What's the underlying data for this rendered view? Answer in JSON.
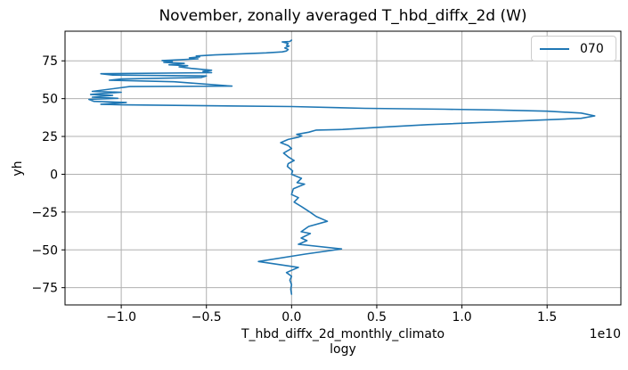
{
  "figure": {
    "title": "November, zonally averaged T_hbd_diffx_2d (W)"
  },
  "axes": {
    "xlabel_line1": "T_hbd_diffx_2d_monthly_climato",
    "xlabel_line2": "logy",
    "ylabel": "yh",
    "offset_text": "1e10",
    "x_tick_labels": [
      "−1.0",
      "−0.5",
      "0.0",
      "0.5",
      "1.0",
      "1.5"
    ],
    "y_tick_labels": [
      "−75",
      "−50",
      "−25",
      "0",
      "25",
      "50",
      "75"
    ]
  },
  "legend": {
    "entries": [
      {
        "label": "070",
        "color": "#1f77b4"
      }
    ]
  },
  "colors": {
    "line": "#1f77b4",
    "grid": "#b0b0b0",
    "spine": "#000000",
    "text": "#000000",
    "legend_border": "#cccccc"
  },
  "chart_data": {
    "type": "line",
    "title": "November, zonally averaged T_hbd_diffx_2d (W)",
    "xlabel": "T_hbd_diffx_2d_monthly_climatology",
    "ylabel": "yh",
    "x_unit_note": "x values are in units of 1e10 W (axis offset text '1e10'); y values are yh (latitude)",
    "xlim": [
      -1.33,
      1.933
    ],
    "ylim": [
      -86.4,
      94.6
    ],
    "x_ticks": [
      -1.0,
      -0.5,
      0.0,
      0.5,
      1.0,
      1.5
    ],
    "y_ticks": [
      -75,
      -50,
      -25,
      0,
      25,
      50,
      75
    ],
    "grid": true,
    "legend_position": "upper right",
    "series": [
      {
        "name": "070",
        "color": "#1f77b4",
        "points": [
          [
            0.0,
            88.7
          ],
          [
            -0.01,
            87.8
          ],
          [
            -0.055,
            87.5
          ],
          [
            -0.02,
            86.5
          ],
          [
            -0.03,
            85.3
          ],
          [
            -0.015,
            84.8
          ],
          [
            -0.04,
            83.5
          ],
          [
            -0.02,
            82.5
          ],
          [
            -0.03,
            81.5
          ],
          [
            -0.055,
            80.9
          ],
          [
            -0.15,
            80.3
          ],
          [
            -0.3,
            79.6
          ],
          [
            -0.45,
            78.9
          ],
          [
            -0.56,
            78.2
          ],
          [
            -0.54,
            77.6
          ],
          [
            -0.6,
            77.0
          ],
          [
            -0.55,
            76.3
          ],
          [
            -0.76,
            75.2
          ],
          [
            -0.7,
            74.6
          ],
          [
            -0.75,
            74.0
          ],
          [
            -0.63,
            73.3
          ],
          [
            -0.72,
            72.4
          ],
          [
            -0.61,
            71.8
          ],
          [
            -0.66,
            71.0
          ],
          [
            -0.59,
            70.0
          ],
          [
            -0.47,
            68.8
          ],
          [
            -0.52,
            68.0
          ],
          [
            -0.47,
            67.2
          ],
          [
            -1.12,
            66.5
          ],
          [
            -1.05,
            65.6
          ],
          [
            -0.5,
            65.0
          ],
          [
            -0.53,
            64.0
          ],
          [
            -1.0,
            63.0
          ],
          [
            -1.07,
            62.2
          ],
          [
            -0.69,
            61.2
          ],
          [
            -0.35,
            58.3
          ],
          [
            -0.95,
            58.0
          ],
          [
            -1.17,
            54.8
          ],
          [
            -1.0,
            54.2
          ],
          [
            -1.1,
            53.5
          ],
          [
            -1.18,
            52.8
          ],
          [
            -1.05,
            52.2
          ],
          [
            -1.17,
            51.0
          ],
          [
            -1.02,
            50.2
          ],
          [
            -1.19,
            49.5
          ],
          [
            -1.16,
            48.2
          ],
          [
            -0.97,
            47.5
          ],
          [
            -1.12,
            46.3
          ],
          [
            -0.99,
            45.9
          ],
          [
            -0.5,
            45.3
          ],
          [
            0.0,
            44.8
          ],
          [
            0.43,
            43.6
          ],
          [
            0.9,
            43.0
          ],
          [
            1.22,
            42.5
          ],
          [
            1.5,
            41.7
          ],
          [
            1.7,
            40.5
          ],
          [
            1.78,
            38.6
          ],
          [
            1.7,
            37.0
          ],
          [
            1.22,
            34.7
          ],
          [
            0.8,
            32.8
          ],
          [
            0.5,
            31.0
          ],
          [
            0.3,
            29.6
          ],
          [
            0.145,
            29.2
          ],
          [
            0.1,
            27.8
          ],
          [
            0.03,
            26.4
          ],
          [
            0.06,
            25.3
          ],
          [
            0.04,
            24.5
          ],
          [
            -0.02,
            23.0
          ],
          [
            -0.064,
            20.9
          ],
          [
            -0.02,
            19.0
          ],
          [
            0.0,
            17.0
          ],
          [
            -0.047,
            14.0
          ],
          [
            -0.02,
            11.5
          ],
          [
            0.015,
            9.1
          ],
          [
            -0.02,
            7.0
          ],
          [
            -0.025,
            5.2
          ],
          [
            0.006,
            2.2
          ],
          [
            0.0,
            0.0
          ],
          [
            0.058,
            -2.7
          ],
          [
            0.032,
            -5.5
          ],
          [
            0.076,
            -6.5
          ],
          [
            0.01,
            -9.6
          ],
          [
            0.0,
            -13.4
          ],
          [
            0.04,
            -15.5
          ],
          [
            0.015,
            -18.4
          ],
          [
            0.06,
            -21.5
          ],
          [
            0.11,
            -25.2
          ],
          [
            0.145,
            -28.0
          ],
          [
            0.21,
            -31.1
          ],
          [
            0.1,
            -34.5
          ],
          [
            0.056,
            -38.0
          ],
          [
            0.11,
            -39.2
          ],
          [
            0.056,
            -42.2
          ],
          [
            0.09,
            -43.9
          ],
          [
            0.04,
            -46.3
          ],
          [
            0.293,
            -49.4
          ],
          [
            0.08,
            -52.8
          ],
          [
            -0.195,
            -57.7
          ],
          [
            0.04,
            -61.6
          ],
          [
            0.0,
            -63.5
          ],
          [
            -0.03,
            -65.0
          ],
          [
            0.0,
            -67.5
          ],
          [
            -0.01,
            -70.0
          ],
          [
            0.0,
            -73.0
          ],
          [
            -0.005,
            -76.0
          ],
          [
            0.0,
            -79.3
          ]
        ]
      }
    ]
  }
}
